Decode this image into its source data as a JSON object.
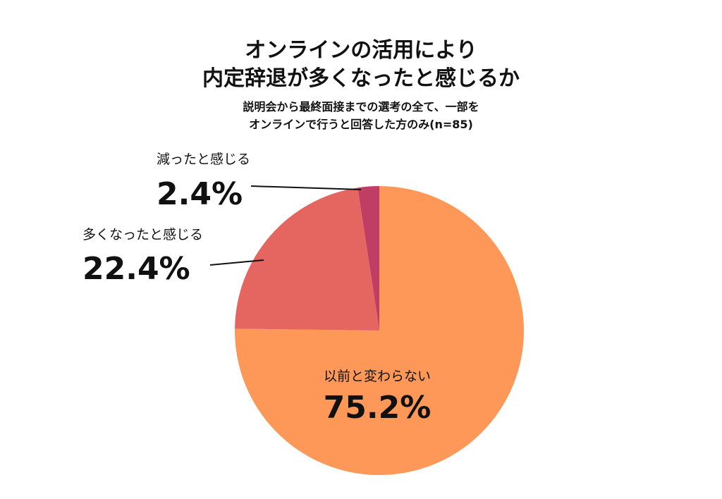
{
  "title_line1": "オンラインの活用により",
  "title_line2": "内定辞退が多くなったと感じるか",
  "subtitle_line1": "説明会から最終面接までの選考の全て、一部を",
  "subtitle_line2": "オンラインで行うと回答した方のみ(n=85)",
  "colors": {
    "same": "#fd9858",
    "more": "#e56560",
    "less": "#c03e64"
  },
  "chart_data": {
    "type": "pie",
    "title": "オンラインの活用により内定辞退が多くなったと感じるか",
    "subtitle": "説明会から最終面接までの選考の全て、一部をオンラインで行うと回答した方のみ(n=85)",
    "slices": [
      {
        "label": "減ったと感じる",
        "value": 2.4,
        "value_label": "2.4%",
        "color": "#c03e64"
      },
      {
        "label": "以前と変わらない",
        "value": 75.2,
        "value_label": "75.2%",
        "color": "#fd9858"
      },
      {
        "label": "多くなったと感じる",
        "value": 22.4,
        "value_label": "22.4%",
        "color": "#e56560"
      }
    ]
  }
}
